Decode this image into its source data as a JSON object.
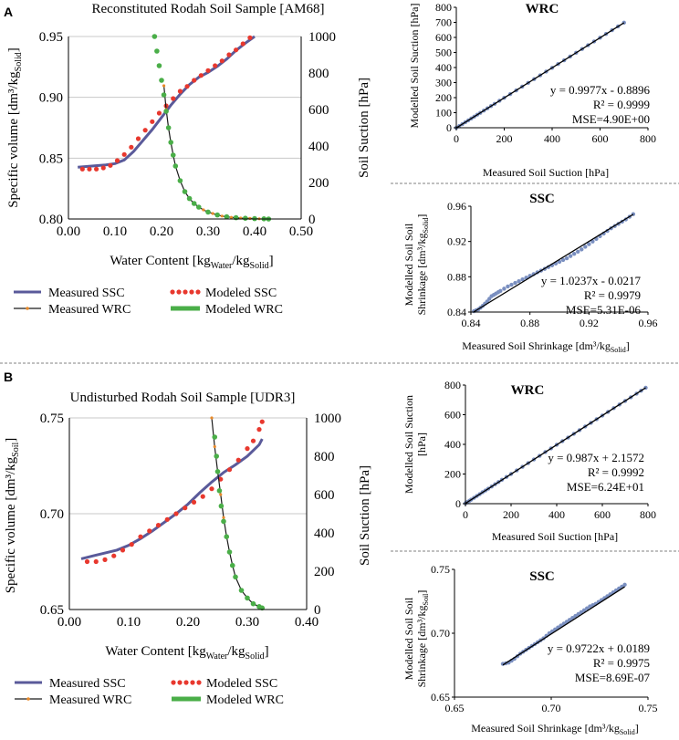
{
  "panel_labels": [
    "A",
    "B"
  ],
  "colors": {
    "measured_ssc": "#5a5a9a",
    "modeled_ssc": "#e8382e",
    "measured_wrc": "#1a1a1a",
    "measured_wrc_marker": "#e88a2a",
    "modeled_wrc": "#4aae48",
    "scatter": "#7a8fc0",
    "fit": "#000000",
    "axis": "#000000",
    "separator": "#808080"
  },
  "sub_scripts": {
    "water": "Water",
    "solid": "Solid",
    "soil": "Soil"
  },
  "chart_data": [
    {
      "id": "A-main",
      "type": "line",
      "title": "Reconstituted Rodah Soil Sample [AM68]",
      "xlabel_pre": "Water Content [kg",
      "xlabel_mid": "/kg",
      "xlabel_end": "]",
      "ylabel_pre": "Specific volume [dm³/kg",
      "ylabel_end": "]",
      "y2label": "Soil Suction [hPa]",
      "xlim": [
        0.0,
        0.5
      ],
      "ylim": [
        0.8,
        0.95
      ],
      "y2lim": [
        0,
        1000
      ],
      "xticks": [
        "0.00",
        "0.10",
        "0.20",
        "0.30",
        "0.40",
        "0.50"
      ],
      "yticks": [
        "0.80",
        "0.85",
        "0.90",
        "0.95"
      ],
      "y2ticks": [
        "0",
        "200",
        "400",
        "600",
        "800",
        "1000"
      ],
      "legend": [
        "Measured SSC",
        "Modeled SSC",
        "Measured WRC",
        "Modeled WRC"
      ],
      "series": [
        {
          "name": "Measured SSC",
          "axis": "y",
          "x": [
            0.02,
            0.05,
            0.08,
            0.1,
            0.12,
            0.14,
            0.16,
            0.18,
            0.2,
            0.22,
            0.24,
            0.26,
            0.28,
            0.3,
            0.32,
            0.34,
            0.36,
            0.38,
            0.4
          ],
          "y": [
            0.8425,
            0.8435,
            0.8445,
            0.8455,
            0.8485,
            0.8555,
            0.8645,
            0.8735,
            0.8835,
            0.8935,
            0.9025,
            0.9105,
            0.9165,
            0.9205,
            0.9255,
            0.9315,
            0.9385,
            0.9445,
            0.9505
          ]
        },
        {
          "name": "Modeled SSC",
          "axis": "y",
          "x": [
            0.03,
            0.045,
            0.06,
            0.075,
            0.09,
            0.105,
            0.12,
            0.135,
            0.15,
            0.165,
            0.18,
            0.195,
            0.21,
            0.225,
            0.24,
            0.255,
            0.27,
            0.285,
            0.3,
            0.315,
            0.33,
            0.345,
            0.36,
            0.375,
            0.39
          ],
          "y": [
            0.841,
            0.841,
            0.841,
            0.842,
            0.844,
            0.848,
            0.853,
            0.859,
            0.866,
            0.873,
            0.88,
            0.887,
            0.893,
            0.899,
            0.905,
            0.909,
            0.914,
            0.918,
            0.922,
            0.926,
            0.93,
            0.935,
            0.939,
            0.944,
            0.949
          ]
        },
        {
          "name": "Measured WRC",
          "axis": "y2",
          "x": [
            0.205,
            0.21,
            0.215,
            0.22,
            0.225,
            0.23,
            0.24,
            0.25,
            0.26,
            0.27,
            0.28,
            0.29,
            0.3,
            0.31,
            0.32,
            0.33,
            0.34,
            0.35,
            0.37,
            0.39,
            0.41
          ],
          "y": [
            730,
            600,
            500,
            420,
            350,
            290,
            210,
            150,
            112,
            85,
            65,
            50,
            38,
            30,
            22,
            16,
            12,
            9,
            5,
            3,
            1
          ]
        },
        {
          "name": "Modeled WRC",
          "axis": "y2",
          "x": [
            0.185,
            0.19,
            0.195,
            0.2,
            0.205,
            0.21,
            0.215,
            0.22,
            0.225,
            0.23,
            0.24,
            0.25,
            0.26,
            0.27,
            0.28,
            0.3,
            0.32,
            0.34,
            0.36,
            0.38,
            0.4,
            0.42,
            0.43
          ],
          "y": [
            1000,
            920,
            840,
            760,
            680,
            590,
            500,
            420,
            350,
            290,
            210,
            150,
            112,
            85,
            65,
            38,
            22,
            12,
            7,
            4,
            2,
            1,
            0
          ]
        }
      ]
    },
    {
      "id": "A-wrc",
      "type": "scatter",
      "title": "WRC",
      "xlabel": "Measured Soil Suction [hPa]",
      "ylabel": "Modelled Soil Suction [hPa]",
      "xlim": [
        0,
        800
      ],
      "ylim": [
        0,
        800
      ],
      "xticks": [
        "0",
        "200",
        "400",
        "600",
        "800"
      ],
      "yticks": [
        "0",
        "100",
        "200",
        "300",
        "400",
        "500",
        "600",
        "700",
        "800"
      ],
      "annotation": [
        "y = 0.9977x - 0.8896",
        "R² = 0.9999",
        "MSE=4.90E+00"
      ],
      "fit": {
        "slope": 0.9977,
        "intercept": -0.8896
      },
      "x": [
        0,
        25,
        50,
        75,
        100,
        130,
        160,
        200,
        250,
        300,
        350,
        400,
        450,
        500,
        550,
        600,
        650,
        700
      ],
      "y": [
        0,
        24,
        49,
        74,
        99,
        129,
        159,
        199,
        248,
        298,
        348,
        398,
        448,
        498,
        548,
        598,
        648,
        698
      ]
    },
    {
      "id": "A-ssc",
      "type": "scatter",
      "title": "SSC",
      "xlabel_pre": "Measured Soil Shrinkage [dm³/kg",
      "xlabel_end": "]",
      "ylabel_line1": "Modelled Soil Soil",
      "ylabel_line2_pre": "Shrinkage [dm³/kg",
      "ylabel_line2_end": "]",
      "xlim": [
        0.84,
        0.96
      ],
      "ylim": [
        0.84,
        0.96
      ],
      "xticks": [
        "0.84",
        "0.88",
        "0.92",
        "0.96"
      ],
      "yticks": [
        "0.84",
        "0.88",
        "0.92",
        "0.96"
      ],
      "annotation": [
        "y = 1.0237x - 0.0217",
        "R² = 0.9979",
        "MSE=5.31E-06"
      ],
      "fit": {
        "slope": 1.0237,
        "intercept": -0.0217
      },
      "x": [
        0.842,
        0.845,
        0.848,
        0.851,
        0.854,
        0.857,
        0.86,
        0.865,
        0.87,
        0.875,
        0.88,
        0.885,
        0.89,
        0.895,
        0.9,
        0.905,
        0.91,
        0.915,
        0.92,
        0.925,
        0.93,
        0.935,
        0.94,
        0.945,
        0.95
      ],
      "y": [
        0.841,
        0.843,
        0.847,
        0.852,
        0.858,
        0.861,
        0.864,
        0.869,
        0.873,
        0.877,
        0.881,
        0.885,
        0.889,
        0.893,
        0.897,
        0.901,
        0.906,
        0.911,
        0.917,
        0.923,
        0.929,
        0.935,
        0.94,
        0.945,
        0.951
      ]
    },
    {
      "id": "B-main",
      "type": "line",
      "title": "Undisturbed Rodah Soil Sample [UDR3]",
      "xlabel_pre": "Water Content [kg",
      "xlabel_mid": "/kg",
      "xlabel_end": "]",
      "ylabel_pre": "Specific volume [dm³/kg",
      "ylabel_end": "]",
      "y2label": "Soil Suction [hPa]",
      "xlim": [
        0.0,
        0.4
      ],
      "ylim": [
        0.65,
        0.75
      ],
      "y2lim": [
        0,
        1000
      ],
      "xticks": [
        "0.00",
        "0.10",
        "0.20",
        "0.30",
        "0.40"
      ],
      "yticks": [
        "0.65",
        "0.70",
        "0.75"
      ],
      "y2ticks": [
        "0",
        "200",
        "400",
        "600",
        "800",
        "1000"
      ],
      "legend": [
        "Measured SSC",
        "Modeled SSC",
        "Measured WRC",
        "Modeled WRC"
      ],
      "series": [
        {
          "name": "Measured SSC",
          "axis": "y",
          "x": [
            0.02,
            0.04,
            0.06,
            0.08,
            0.1,
            0.12,
            0.14,
            0.16,
            0.18,
            0.2,
            0.22,
            0.24,
            0.26,
            0.28,
            0.3,
            0.31,
            0.32,
            0.325
          ],
          "y": [
            0.6765,
            0.678,
            0.6795,
            0.681,
            0.6835,
            0.687,
            0.691,
            0.6955,
            0.7,
            0.705,
            0.711,
            0.7165,
            0.7215,
            0.7255,
            0.73,
            0.733,
            0.736,
            0.739
          ]
        },
        {
          "name": "Modeled SSC",
          "axis": "y",
          "x": [
            0.03,
            0.045,
            0.06,
            0.075,
            0.09,
            0.105,
            0.12,
            0.135,
            0.15,
            0.165,
            0.18,
            0.195,
            0.21,
            0.225,
            0.24,
            0.255,
            0.27,
            0.285,
            0.3,
            0.31,
            0.32,
            0.325
          ],
          "y": [
            0.675,
            0.675,
            0.676,
            0.678,
            0.681,
            0.684,
            0.688,
            0.691,
            0.694,
            0.697,
            0.7,
            0.703,
            0.706,
            0.709,
            0.713,
            0.718,
            0.723,
            0.728,
            0.734,
            0.738,
            0.744,
            0.748
          ]
        },
        {
          "name": "Measured WRC",
          "axis": "y2",
          "x": [
            0.24,
            0.245,
            0.25,
            0.255,
            0.26,
            0.265,
            0.27,
            0.275,
            0.28,
            0.29,
            0.3,
            0.31,
            0.32,
            0.325
          ],
          "y": [
            1000,
            850,
            720,
            600,
            480,
            380,
            300,
            230,
            170,
            100,
            60,
            30,
            15,
            8
          ]
        },
        {
          "name": "Modeled WRC",
          "axis": "y2",
          "x": [
            0.245,
            0.248,
            0.25,
            0.253,
            0.256,
            0.26,
            0.265,
            0.27,
            0.275,
            0.28,
            0.29,
            0.3,
            0.31,
            0.32,
            0.325
          ],
          "y": [
            900,
            800,
            720,
            620,
            540,
            460,
            380,
            300,
            230,
            170,
            100,
            60,
            30,
            15,
            8
          ]
        }
      ]
    },
    {
      "id": "B-wrc",
      "type": "scatter",
      "title": "WRC",
      "xlabel": "Measured Soil Suction [hPa]",
      "ylabel_line1": "Modelled Soil Suction",
      "ylabel_line2": "[hPa]",
      "xlim": [
        0,
        800
      ],
      "ylim": [
        0,
        800
      ],
      "xticks": [
        "0",
        "200",
        "400",
        "600",
        "800"
      ],
      "yticks": [
        "0",
        "200",
        "400",
        "600",
        "800"
      ],
      "annotation": [
        "y = 0.987x + 2.1572",
        "R² = 0.9992",
        "MSE=6.24E+01"
      ],
      "fit": {
        "slope": 0.987,
        "intercept": 2.1572
      },
      "x": [
        0,
        10,
        25,
        50,
        75,
        100,
        130,
        160,
        200,
        250,
        300,
        350,
        400,
        450,
        500,
        550,
        600,
        650,
        700,
        750,
        790
      ],
      "y": [
        3,
        12,
        27,
        52,
        77,
        101,
        131,
        161,
        200,
        249,
        298,
        348,
        397,
        446,
        496,
        545,
        594,
        644,
        693,
        742,
        782
      ]
    },
    {
      "id": "B-ssc",
      "type": "scatter",
      "title": "SSC",
      "xlabel_pre": "Measured Soil Shrinkage [dm³/kg",
      "xlabel_end": "]",
      "ylabel_line1": "Modelled Soil Soil",
      "ylabel_line2_pre": "Shrinkage [dm³/kg",
      "ylabel_line2_end": "]",
      "xlim": [
        0.65,
        0.75
      ],
      "ylim": [
        0.65,
        0.75
      ],
      "xticks": [
        "0.65",
        "0.70",
        "0.75"
      ],
      "yticks": [
        "0.65",
        "0.70",
        "0.75"
      ],
      "annotation": [
        "y = 0.9722x + 0.0189",
        "R² = 0.9975",
        "MSE=8.69E-07"
      ],
      "fit": {
        "slope": 0.9722,
        "intercept": 0.0189
      },
      "x": [
        0.675,
        0.678,
        0.681,
        0.684,
        0.687,
        0.69,
        0.693,
        0.696,
        0.699,
        0.702,
        0.705,
        0.708,
        0.711,
        0.714,
        0.717,
        0.72,
        0.723,
        0.726,
        0.729,
        0.732,
        0.735,
        0.738
      ],
      "y": [
        0.676,
        0.677,
        0.68,
        0.684,
        0.687,
        0.69,
        0.693,
        0.696,
        0.7,
        0.703,
        0.706,
        0.709,
        0.712,
        0.715,
        0.718,
        0.721,
        0.723,
        0.726,
        0.729,
        0.732,
        0.735,
        0.738
      ]
    }
  ]
}
